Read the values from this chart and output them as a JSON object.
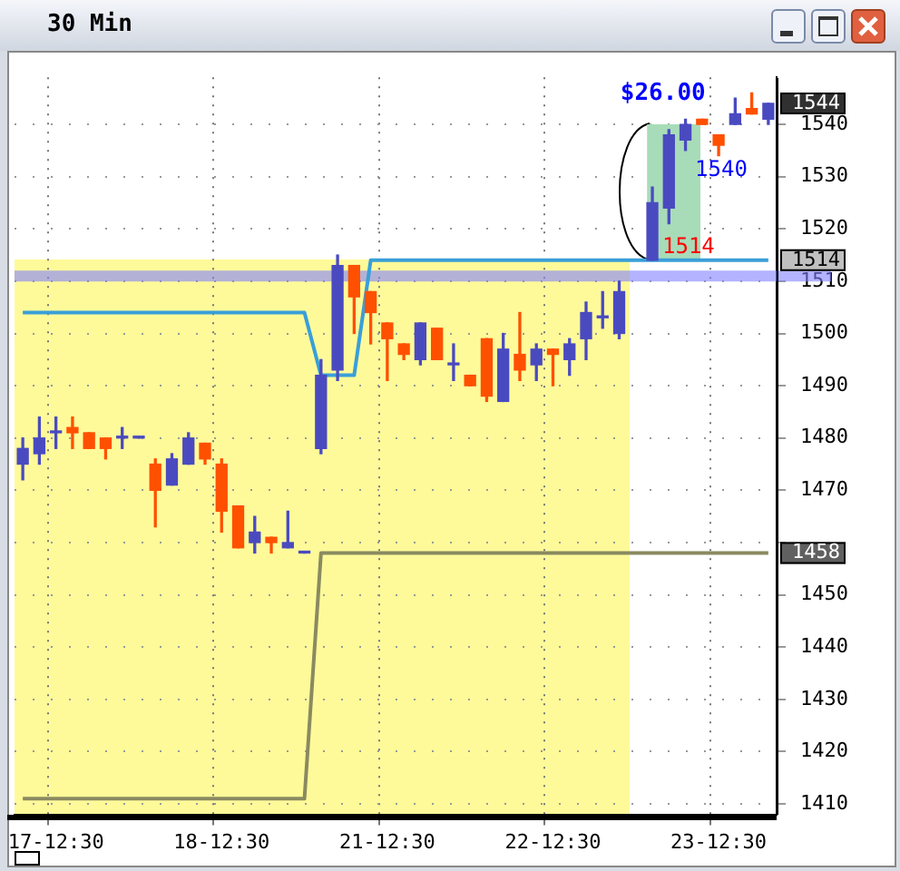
{
  "chart_data": {
    "type": "candlestick",
    "title": "30 Min",
    "categories": [
      null,
      null,
      "17-12:30",
      null,
      null,
      null,
      null,
      null,
      null,
      null,
      null,
      null,
      "18-12:30",
      null,
      null,
      null,
      null,
      null,
      null,
      null,
      null,
      null,
      "21-12:30",
      null,
      null,
      null,
      null,
      null,
      null,
      null,
      null,
      null,
      "22-12:30",
      null,
      null,
      null,
      null,
      null,
      null,
      null,
      null,
      null,
      "23-12:30",
      null,
      null,
      null
    ],
    "ohlc": [
      [
        1475,
        1480,
        1472,
        1478
      ],
      [
        1477,
        1484,
        1475,
        1480
      ],
      [
        1481,
        1484,
        1478,
        1481
      ],
      [
        1482,
        1484,
        1478,
        1481
      ],
      [
        1481,
        1481,
        1478,
        1478
      ],
      [
        1480,
        1480,
        1476,
        1478
      ],
      [
        1480,
        1482,
        1478,
        1480
      ],
      [
        1480,
        1480,
        1480,
        1480
      ],
      [
        1475,
        1476,
        1463,
        1470
      ],
      [
        1471,
        1477,
        1471,
        1476
      ],
      [
        1475,
        1481,
        1475,
        1480
      ],
      [
        1479,
        1479,
        1475,
        1476
      ],
      [
        1475,
        1476,
        1462,
        1466
      ],
      [
        1467,
        1467,
        1459,
        1459
      ],
      [
        1460,
        1465,
        1458,
        1462
      ],
      [
        1461,
        1461,
        1458,
        1460
      ],
      [
        1459,
        1466,
        1459,
        1460
      ],
      [
        1458,
        1458,
        1458,
        1458
      ],
      [
        1478,
        1495,
        1477,
        1492
      ],
      [
        1493,
        1515,
        1491,
        1513
      ],
      [
        1513,
        1513,
        1500,
        1507
      ],
      [
        1508,
        1508,
        1498,
        1504
      ],
      [
        1502,
        1502,
        1491,
        1499
      ],
      [
        1498,
        1498,
        1495,
        1496
      ],
      [
        1495,
        1502,
        1494,
        1502
      ],
      [
        1501,
        1501,
        1495,
        1495
      ],
      [
        1494,
        1498,
        1491,
        1494
      ],
      [
        1492,
        1492,
        1490,
        1490
      ],
      [
        1499,
        1499,
        1487,
        1488
      ],
      [
        1487,
        1500,
        1487,
        1497
      ],
      [
        1496,
        1504,
        1491,
        1493
      ],
      [
        1494,
        1498,
        1491,
        1497
      ],
      [
        1497,
        1497,
        1490,
        1496
      ],
      [
        1495,
        1499,
        1492,
        1498
      ],
      [
        1499,
        1506,
        1495,
        1504
      ],
      [
        1503,
        1508,
        1501,
        1503
      ],
      [
        1500,
        1510,
        1499,
        1508
      ],
      null,
      [
        1514,
        1528,
        1514,
        1525
      ],
      [
        1524,
        1539,
        1521,
        1538
      ],
      [
        1537,
        1541,
        1535,
        1540
      ],
      [
        1541,
        1541,
        1540,
        1540
      ],
      [
        1538,
        1538,
        1534,
        1536
      ],
      [
        1540,
        1545,
        1540,
        1542
      ],
      [
        1543,
        1546,
        1542,
        1542
      ],
      [
        1541,
        1544,
        1540,
        1544
      ]
    ],
    "colors": [
      "#4a4ac0",
      "#4a4ac0",
      "#4a4ac0",
      "#ff5000",
      "#ff5000",
      "#ff5000",
      "#4a4ac0",
      "#4a4ac0",
      "#ff5000",
      "#4a4ac0",
      "#4a4ac0",
      "#ff5000",
      "#ff5000",
      "#ff5000",
      "#4a4ac0",
      "#ff5000",
      "#4a4ac0",
      "#4a4ac0",
      "#4a4ac0",
      "#4a4ac0",
      "#ff5000",
      "#ff5000",
      "#ff5000",
      "#ff5000",
      "#4a4ac0",
      "#ff5000",
      "#4a4ac0",
      "#ff5000",
      "#ff5000",
      "#4a4ac0",
      "#ff5000",
      "#4a4ac0",
      "#ff5000",
      "#4a4ac0",
      "#4a4ac0",
      "#4a4ac0",
      "#4a4ac0",
      null,
      "#4a4ac0",
      "#4a4ac0",
      "#4a4ac0",
      "#ff5000",
      "#ff5000",
      "#4a4ac0",
      "#ff5000",
      "#4a4ac0"
    ],
    "series": [
      {
        "type": "line",
        "color": "#3a9fd8",
        "values": [
          1504,
          1504,
          1504,
          1504,
          1504,
          1504,
          1504,
          1504,
          1504,
          1504,
          1504,
          1504,
          1504,
          1504,
          1504,
          1504,
          1504,
          1504,
          1492,
          1492,
          1492,
          1514,
          1514,
          1514,
          1514,
          1514,
          1514,
          1514,
          1514,
          1514,
          1514,
          1514,
          1514,
          1514,
          1514,
          1514,
          1514,
          1514,
          1514,
          1514,
          1514,
          1514,
          1514,
          1514,
          1514,
          1514
        ]
      },
      {
        "type": "line",
        "color": "#8a8a60",
        "values": [
          1411,
          1411,
          1411,
          1411,
          1411,
          1411,
          1411,
          1411,
          1411,
          1411,
          1411,
          1411,
          1411,
          1411,
          1411,
          1411,
          1411,
          1411,
          1458,
          1458,
          1458,
          1458,
          1458,
          1458,
          1458,
          1458,
          1458,
          1458,
          1458,
          1458,
          1458,
          1458,
          1458,
          1458,
          1458,
          1458,
          1458,
          1458,
          1458,
          1458,
          1458,
          1458,
          1458,
          1458,
          1458,
          1458
        ]
      }
    ],
    "ylim": [
      1408,
      1549
    ],
    "yticks": [
      1410,
      1420,
      1430,
      1440,
      1450,
      {
        "value": 1460,
        "label": null
      },
      1470,
      1480,
      1490,
      1500,
      1510,
      1520,
      1530,
      1540
    ],
    "grid": true,
    "ref_lines": [
      {
        "axis": "y",
        "value": 1511,
        "color": "#8080ff"
      }
    ],
    "bands": [
      {
        "axis": "y",
        "from": 1514,
        "to": 1540,
        "color": "#a8dcb8"
      }
    ],
    "annotations": [
      {
        "text": "$26.00",
        "y": 1540
      },
      "1540",
      {
        "text": "1514",
        "y": 1514
      },
      {
        "text": "1544",
        "y": 1544
      },
      {
        "text": "1514",
        "y": 1514
      },
      {
        "text": "1458",
        "y": 1458
      }
    ]
  }
}
